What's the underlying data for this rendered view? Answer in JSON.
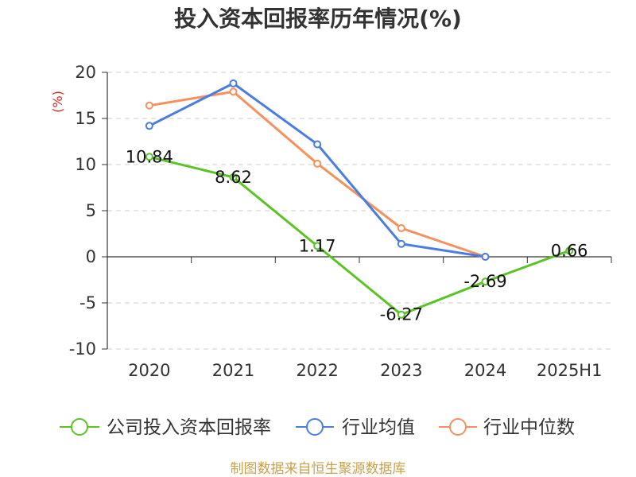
{
  "chart_data": {
    "type": "line",
    "title": "投入资本回报率历年情况(%)",
    "xlabel": "",
    "ylabel": "(%)",
    "categories": [
      "2020",
      "2021",
      "2022",
      "2023",
      "2024",
      "2025H1"
    ],
    "yticks": [
      20,
      15,
      10,
      5,
      0,
      -5,
      -10
    ],
    "ylim": [
      -10,
      20
    ],
    "grid": true,
    "legend_position": "bottom",
    "series": [
      {
        "name": "公司投入资本回报率",
        "color": "#5bc425",
        "values": [
          10.84,
          8.62,
          1.17,
          -6.27,
          -2.69,
          0.66
        ],
        "data_labels": true
      },
      {
        "name": "行业均值",
        "color": "#4a7de1",
        "values": [
          14.2,
          18.8,
          12.2,
          1.4,
          0.0,
          null
        ],
        "data_labels": false
      },
      {
        "name": "行业中位数",
        "color": "#f4915c",
        "values": [
          16.4,
          17.9,
          10.1,
          3.1,
          0.0,
          null
        ],
        "data_labels": false
      }
    ]
  },
  "footer": "制图数据来自恒生聚源数据库"
}
